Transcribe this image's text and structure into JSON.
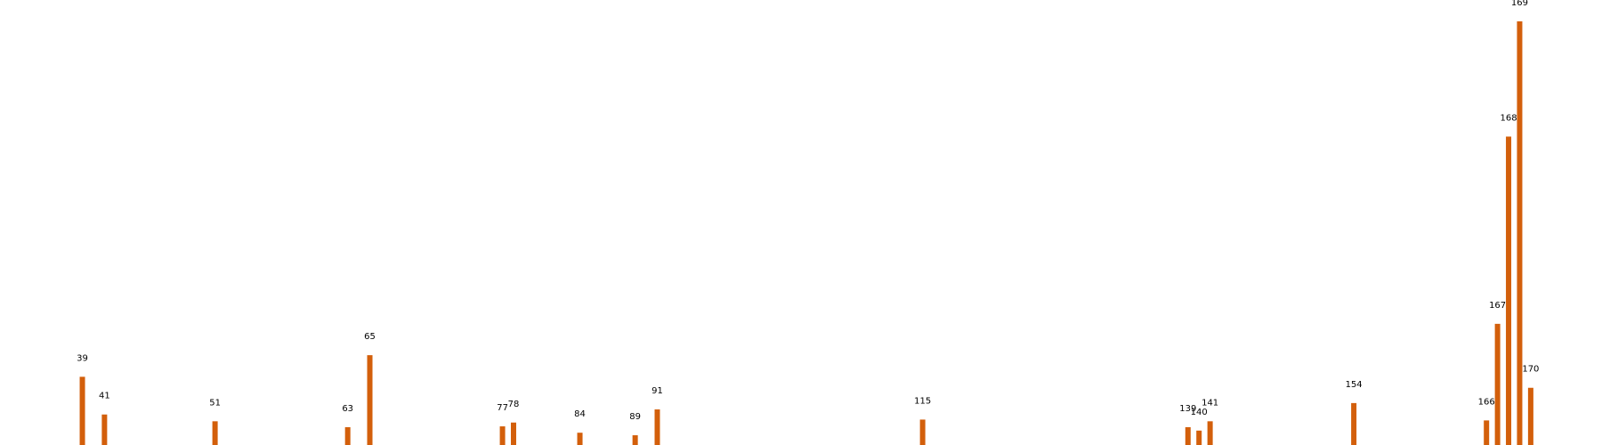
{
  "chart_data": {
    "type": "bar",
    "title": "",
    "xlabel": "",
    "ylabel": "",
    "x_range": [
      33,
      175
    ],
    "y_range": [
      0,
      100
    ],
    "axes_visible": false,
    "grid": false,
    "bar_color": "#d35f0b",
    "series": [
      {
        "points": [
          {
            "x": 39,
            "label": "39",
            "y": 16.1
          },
          {
            "x": 41,
            "label": "41",
            "y": 7.2
          },
          {
            "x": 51,
            "label": "51",
            "y": 5.6
          },
          {
            "x": 63,
            "label": "63",
            "y": 4.2
          },
          {
            "x": 65,
            "label": "65",
            "y": 21.2
          },
          {
            "x": 77,
            "label": "77",
            "y": 4.4
          },
          {
            "x": 78,
            "label": "78",
            "y": 5.3
          },
          {
            "x": 84,
            "label": "84",
            "y": 2.9
          },
          {
            "x": 89,
            "label": "89",
            "y": 2.3
          },
          {
            "x": 91,
            "label": "91",
            "y": 8.4
          },
          {
            "x": 115,
            "label": "115",
            "y": 6.0
          },
          {
            "x": 139,
            "label": "139",
            "y": 4.2
          },
          {
            "x": 140,
            "label": "140",
            "y": 3.4
          },
          {
            "x": 141,
            "label": "141",
            "y": 5.6
          },
          {
            "x": 154,
            "label": "154",
            "y": 9.9
          },
          {
            "x": 166,
            "label": "166",
            "y": 5.8
          },
          {
            "x": 167,
            "label": "167",
            "y": 28.6
          },
          {
            "x": 168,
            "label": "168",
            "y": 72.8
          },
          {
            "x": 169,
            "label": "169",
            "y": 100.0
          },
          {
            "x": 170,
            "label": "170",
            "y": 13.5
          }
        ]
      }
    ]
  }
}
